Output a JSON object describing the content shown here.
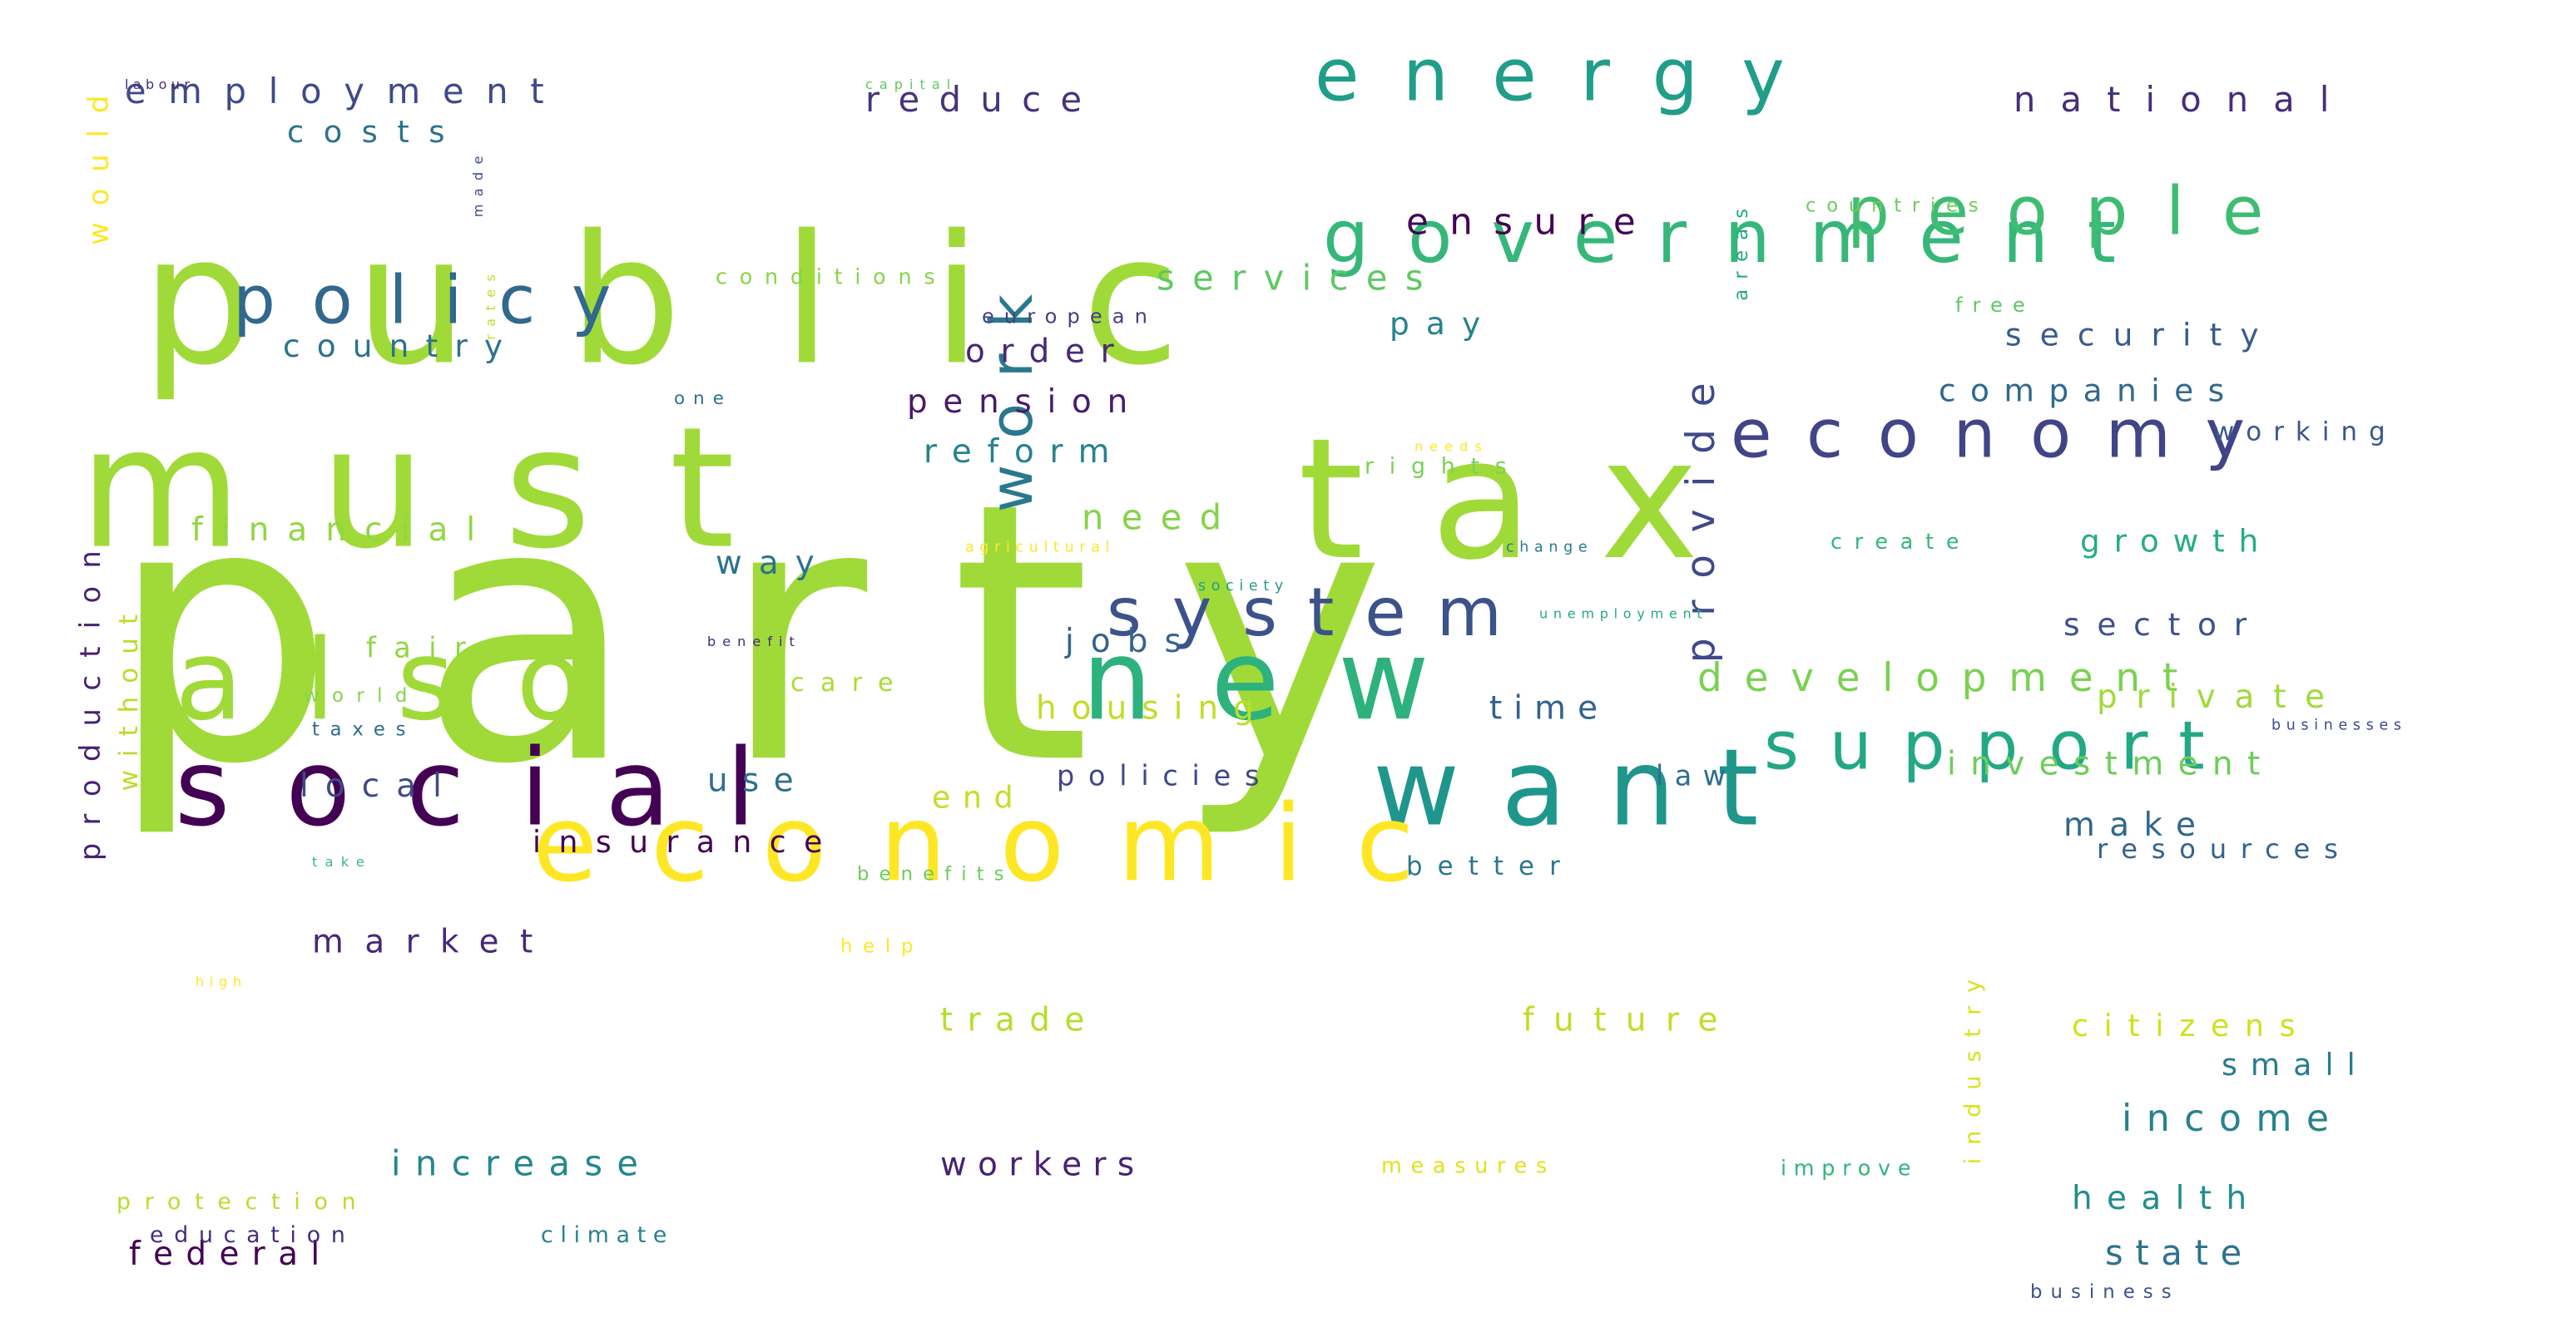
{
  "word_cloud": {
    "words": [
      {
        "text": "party",
        "color": "#a0da39"
      },
      {
        "text": "tax",
        "color": "#a0da39"
      },
      {
        "text": "public",
        "color": "#a0da39"
      },
      {
        "text": "must",
        "color": "#a0da39"
      },
      {
        "text": "also",
        "color": "#a0da39"
      },
      {
        "text": "new",
        "color": "#2db27d"
      },
      {
        "text": "social",
        "color": "#440154"
      },
      {
        "text": "want",
        "color": "#1f968b"
      },
      {
        "text": "economic",
        "color": "#fde725"
      },
      {
        "text": "government",
        "color": "#35b779"
      },
      {
        "text": "energy",
        "color": "#1f9e89"
      },
      {
        "text": "people",
        "color": "#3fbc73"
      },
      {
        "text": "policy",
        "color": "#31688e"
      },
      {
        "text": "economy",
        "color": "#414487"
      },
      {
        "text": "system",
        "color": "#3b528b"
      },
      {
        "text": "support",
        "color": "#22a884"
      },
      {
        "text": "work",
        "color": "#2a788e"
      },
      {
        "text": "development",
        "color": "#7ad151"
      },
      {
        "text": "employment",
        "color": "#3e4a89"
      },
      {
        "text": "reduce",
        "color": "#46337e"
      },
      {
        "text": "national",
        "color": "#472d7b"
      },
      {
        "text": "costs",
        "color": "#2c728e"
      },
      {
        "text": "ensure",
        "color": "#440154"
      },
      {
        "text": "services",
        "color": "#5ec962"
      },
      {
        "text": "country",
        "color": "#2c728e"
      },
      {
        "text": "order",
        "color": "#482878"
      },
      {
        "text": "pension",
        "color": "#481a6c"
      },
      {
        "text": "reform",
        "color": "#26828e"
      },
      {
        "text": "pay",
        "color": "#26828e"
      },
      {
        "text": "security",
        "color": "#365c8d"
      },
      {
        "text": "companies",
        "color": "#31688e"
      },
      {
        "text": "working",
        "color": "#39568c"
      },
      {
        "text": "financial",
        "color": "#8fd744"
      },
      {
        "text": "need",
        "color": "#84d44b"
      },
      {
        "text": "rights",
        "color": "#7ad151"
      },
      {
        "text": "provide",
        "color": "#3e4a89"
      },
      {
        "text": "growth",
        "color": "#27ad81"
      },
      {
        "text": "way",
        "color": "#2c728e"
      },
      {
        "text": "sector",
        "color": "#3b528b"
      },
      {
        "text": "fair",
        "color": "#8fd744"
      },
      {
        "text": "jobs",
        "color": "#33638d"
      },
      {
        "text": "private",
        "color": "#a0da39"
      },
      {
        "text": "care",
        "color": "#aadc32"
      },
      {
        "text": "housing",
        "color": "#bddf26"
      },
      {
        "text": "time",
        "color": "#33638d"
      },
      {
        "text": "investment",
        "color": "#6ccd5a"
      },
      {
        "text": "local",
        "color": "#3e4a89"
      },
      {
        "text": "use",
        "color": "#2e6f8e"
      },
      {
        "text": "end",
        "color": "#c2df23"
      },
      {
        "text": "policies",
        "color": "#3f4788"
      },
      {
        "text": "law",
        "color": "#2e6e8e"
      },
      {
        "text": "make",
        "color": "#31688e"
      },
      {
        "text": "insurance",
        "color": "#440154"
      },
      {
        "text": "resources",
        "color": "#33638d"
      },
      {
        "text": "better",
        "color": "#2a788e"
      },
      {
        "text": "market",
        "color": "#482878"
      },
      {
        "text": "production",
        "color": "#482173"
      },
      {
        "text": "without",
        "color": "#b5de2b"
      },
      {
        "text": "would",
        "color": "#fde725"
      },
      {
        "text": "future",
        "color": "#bddf26"
      },
      {
        "text": "citizens",
        "color": "#d0e11c"
      },
      {
        "text": "trade",
        "color": "#b5de2b"
      },
      {
        "text": "small",
        "color": "#287c8e"
      },
      {
        "text": "income",
        "color": "#26828e"
      },
      {
        "text": "increase",
        "color": "#24878e"
      },
      {
        "text": "workers",
        "color": "#482173"
      },
      {
        "text": "health",
        "color": "#228d8d"
      },
      {
        "text": "state",
        "color": "#2c728e"
      },
      {
        "text": "federal",
        "color": "#440154"
      },
      {
        "text": "education",
        "color": "#472c7a"
      },
      {
        "text": "climate",
        "color": "#26828e"
      },
      {
        "text": "protection",
        "color": "#b5de2b"
      },
      {
        "text": "measures",
        "color": "#dde318"
      },
      {
        "text": "improve",
        "color": "#31b57b"
      },
      {
        "text": "industry",
        "color": "#d8e219"
      },
      {
        "text": "business",
        "color": "#3b528b"
      },
      {
        "text": "conditions",
        "color": "#86d549"
      },
      {
        "text": "european",
        "color": "#433e85"
      },
      {
        "text": "countries",
        "color": "#6ccd5a"
      },
      {
        "text": "free",
        "color": "#5ec962"
      },
      {
        "text": "areas",
        "color": "#22a884"
      },
      {
        "text": "made",
        "color": "#3e4a89"
      },
      {
        "text": "rates",
        "color": "#bddf26"
      },
      {
        "text": "one",
        "color": "#2c728e"
      },
      {
        "text": "labour",
        "color": "#472c7a"
      },
      {
        "text": "capital",
        "color": "#5ec962"
      },
      {
        "text": "needs",
        "color": "#fde725"
      },
      {
        "text": "agricultural",
        "color": "#fde725"
      },
      {
        "text": "change",
        "color": "#2a788e"
      },
      {
        "text": "society",
        "color": "#1f9e89"
      },
      {
        "text": "create",
        "color": "#35b779"
      },
      {
        "text": "unemployment",
        "color": "#22a884"
      },
      {
        "text": "benefit",
        "color": "#482878"
      },
      {
        "text": "businesses",
        "color": "#3e4a89"
      },
      {
        "text": "world",
        "color": "#84d44b"
      },
      {
        "text": "taxes",
        "color": "#2e6e8e"
      },
      {
        "text": "benefits",
        "color": "#6ccd5a"
      },
      {
        "text": "help",
        "color": "#fde725"
      },
      {
        "text": "high",
        "color": "#fde725"
      },
      {
        "text": "take",
        "color": "#35b779"
      }
    ]
  }
}
